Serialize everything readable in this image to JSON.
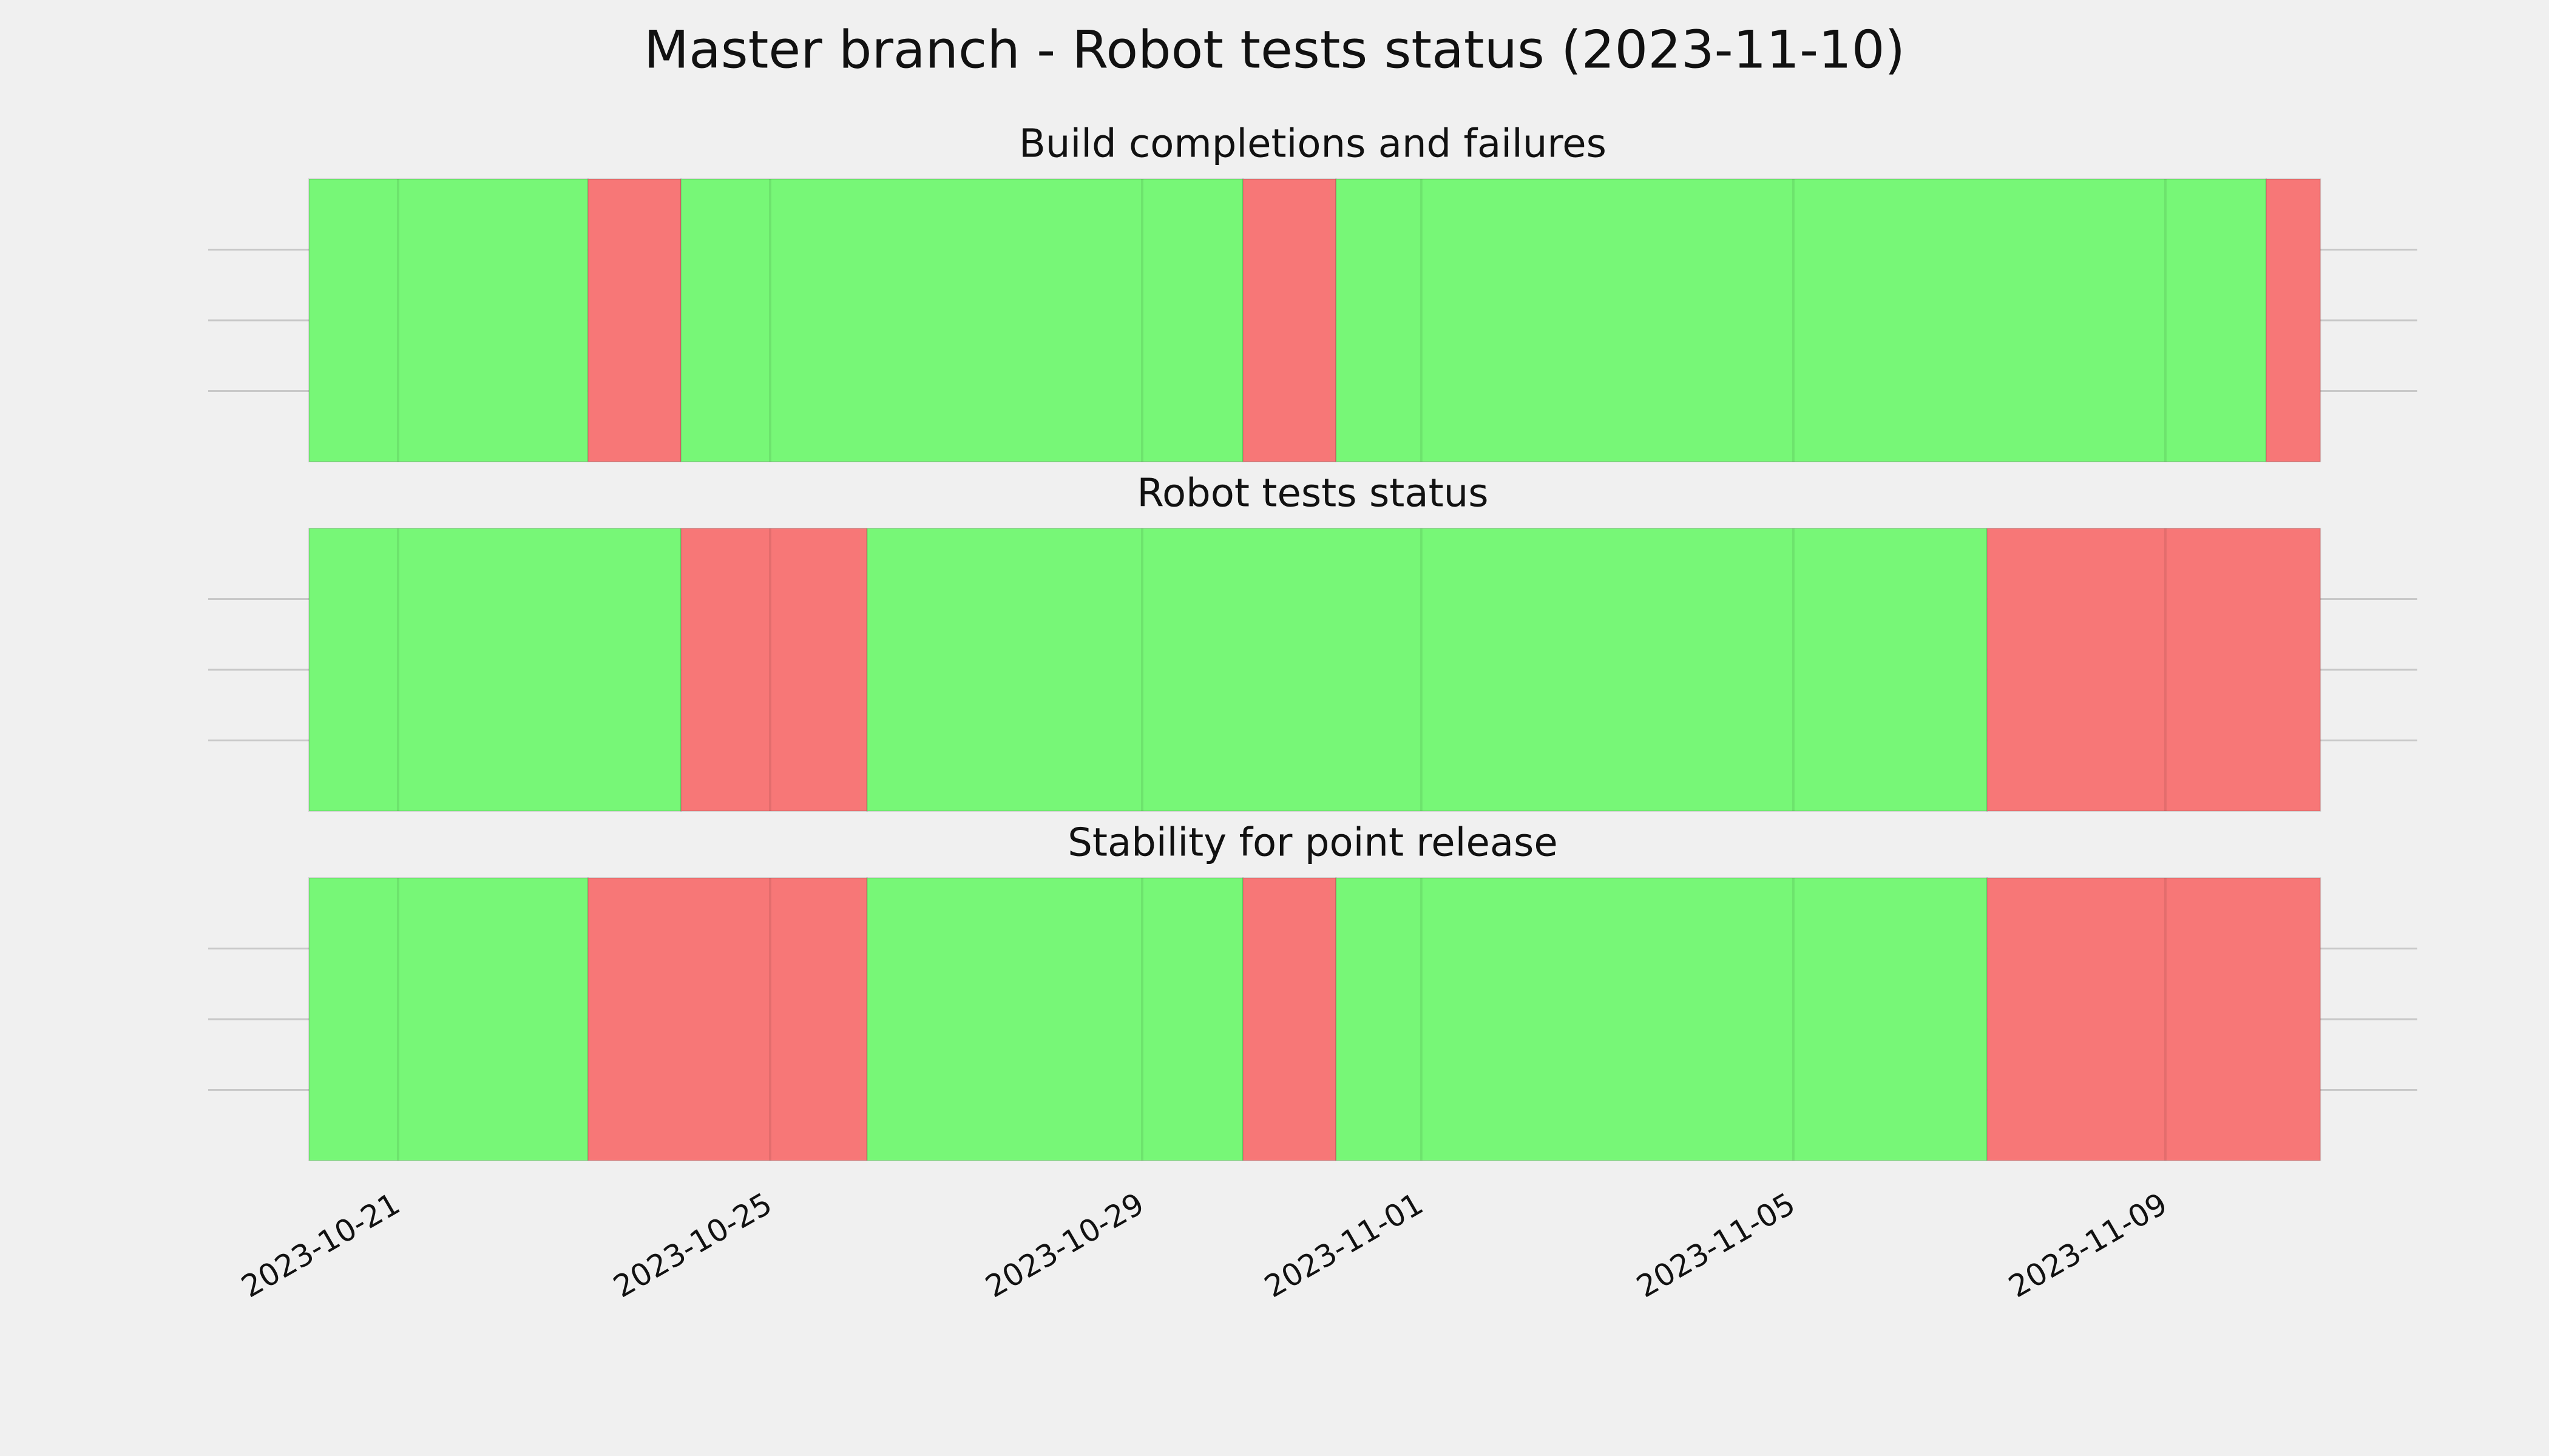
{
  "title": "Master branch - Robot tests status (2023-11-10)",
  "chart_data": [
    {
      "type": "span",
      "title": "Build completions and failures",
      "xlim": [
        "2023-10-18T23:00",
        "2023-11-11T17:00"
      ],
      "xticks": [
        "2023-10-21",
        "2023-10-25",
        "2023-10-29",
        "2023-11-01",
        "2023-11-05",
        "2023-11-09"
      ],
      "ylim": [
        0,
        1
      ],
      "yticks": [
        0.25,
        0.5,
        0.75
      ],
      "grid": true,
      "spans": [
        {
          "start": "2023-10-20T01:00",
          "end": "2023-10-23T01:00",
          "color": "#77f777"
        },
        {
          "start": "2023-10-23T01:00",
          "end": "2023-10-24T01:00",
          "color": "#f77777"
        },
        {
          "start": "2023-10-24T01:00",
          "end": "2023-10-30T02:00",
          "color": "#77f777"
        },
        {
          "start": "2023-10-30T02:00",
          "end": "2023-10-31T02:00",
          "color": "#f77777"
        },
        {
          "start": "2023-10-31T02:00",
          "end": "2023-11-10T02:00",
          "color": "#77f777"
        },
        {
          "start": "2023-11-10T02:00",
          "end": "2023-11-10T16:00",
          "color": "#f77777"
        }
      ]
    },
    {
      "type": "span",
      "title": "Robot tests status",
      "xlim": [
        "2023-10-18T23:00",
        "2023-11-11T17:00"
      ],
      "xticks": [
        "2023-10-21",
        "2023-10-25",
        "2023-10-29",
        "2023-11-01",
        "2023-11-05",
        "2023-11-09"
      ],
      "ylim": [
        0,
        1
      ],
      "yticks": [
        0.25,
        0.5,
        0.75
      ],
      "grid": true,
      "spans": [
        {
          "start": "2023-10-20T01:00",
          "end": "2023-10-24T01:00",
          "color": "#77f777"
        },
        {
          "start": "2023-10-24T01:00",
          "end": "2023-10-26T01:00",
          "color": "#f77777"
        },
        {
          "start": "2023-10-26T01:00",
          "end": "2023-11-07T02:00",
          "color": "#77f777"
        },
        {
          "start": "2023-11-07T02:00",
          "end": "2023-11-10T16:00",
          "color": "#f77777"
        }
      ]
    },
    {
      "type": "span",
      "title": "Stability for point release",
      "xlim": [
        "2023-10-18T23:00",
        "2023-11-11T17:00"
      ],
      "xticks": [
        "2023-10-21",
        "2023-10-25",
        "2023-10-29",
        "2023-11-01",
        "2023-11-05",
        "2023-11-09"
      ],
      "ylim": [
        0,
        1
      ],
      "yticks": [
        0.25,
        0.5,
        0.75
      ],
      "grid": true,
      "spans": [
        {
          "start": "2023-10-20T01:00",
          "end": "2023-10-23T01:00",
          "color": "#77f777"
        },
        {
          "start": "2023-10-23T01:00",
          "end": "2023-10-26T01:00",
          "color": "#f77777"
        },
        {
          "start": "2023-10-26T01:00",
          "end": "2023-10-30T02:00",
          "color": "#77f777"
        },
        {
          "start": "2023-10-30T02:00",
          "end": "2023-10-31T02:00",
          "color": "#f77777"
        },
        {
          "start": "2023-10-31T02:00",
          "end": "2023-11-07T02:00",
          "color": "#77f777"
        },
        {
          "start": "2023-11-07T02:00",
          "end": "2023-11-10T16:00",
          "color": "#f77777"
        }
      ]
    }
  ]
}
